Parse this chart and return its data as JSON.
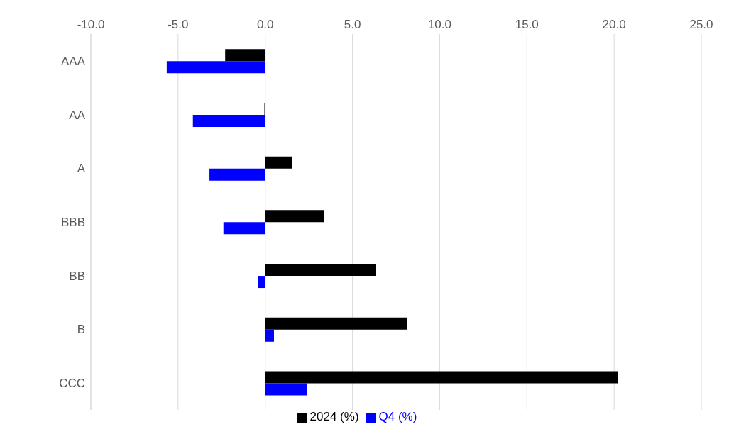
{
  "chart_data": {
    "type": "bar",
    "orientation": "horizontal",
    "categories": [
      "AAA",
      "AA",
      "A",
      "BBB",
      "BB",
      "B",
      "CCC"
    ],
    "series": [
      {
        "name": "2024 (%)",
        "color": "#000000",
        "values": [
          -2.3,
          -0.05,
          1.55,
          3.35,
          6.35,
          8.15,
          20.2
        ]
      },
      {
        "name": "Q4 (%)",
        "color": "#0000ff",
        "values": [
          -5.65,
          -4.15,
          -3.2,
          -2.4,
          -0.4,
          0.5,
          2.4
        ]
      }
    ],
    "xlim": [
      -10,
      25
    ],
    "xticks": [
      {
        "value": -10,
        "label": "-10.0"
      },
      {
        "value": -5,
        "label": "-5.0"
      },
      {
        "value": 0,
        "label": "0.0"
      },
      {
        "value": 5,
        "label": "5.0"
      },
      {
        "value": 10,
        "label": "10.0"
      },
      {
        "value": 15,
        "label": "15.0"
      },
      {
        "value": 20,
        "label": "20.0"
      },
      {
        "value": 25,
        "label": "25.0"
      }
    ],
    "grid": "x",
    "legend": "bottom"
  }
}
